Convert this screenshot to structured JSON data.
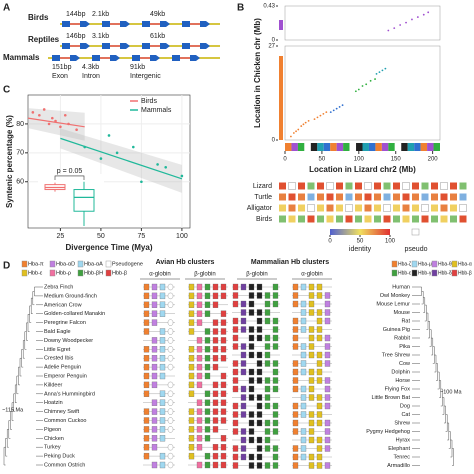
{
  "panels": {
    "a": {
      "letter": "A",
      "rows": [
        {
          "name": "Birds",
          "exon": "144bp",
          "intron": "2.1kb",
          "intergenic": "49kb"
        },
        {
          "name": "Reptiles",
          "exon": "146bp",
          "intron": "3.1kb",
          "intergenic": "61kb"
        },
        {
          "name": "Mammals",
          "exon": "151bp",
          "intron": "4.3kb",
          "intergenic": "91kb"
        }
      ],
      "legend": [
        "Exon",
        "Intron",
        "Intergenic"
      ]
    },
    "b": {
      "letter": "B",
      "species": [
        "Lizard",
        "Turtle",
        "Alligator",
        "Birds"
      ],
      "scale_ticks": [
        0,
        50,
        100
      ],
      "scale_labels": [
        "identity",
        "pseudo"
      ]
    },
    "c": {
      "letter": "C"
    },
    "d": {
      "letter": "D",
      "avian_legend": [
        "Hba-π",
        "Hba-αD",
        "Hba-αA",
        "Pseudogene",
        "Hbb-ε",
        "Hbb-ρ",
        "Hbb-βH",
        "Hbb-β"
      ],
      "mammal_legend": [
        "Hba-ζ",
        "Hba-μ",
        "Hba-θ",
        "Hba-α",
        "Hbb-ε",
        "Hbb-γ",
        "Hbb-δ",
        "Hbb-β"
      ],
      "avian_header": "Avian Hb clusters",
      "mammal_header": "Mammalian Hb clusters",
      "avian_sub": [
        "α-globin",
        "β-globin"
      ],
      "mammal_sub": [
        "β-globin",
        "α-globin"
      ],
      "avian_age": "~115 Ma",
      "mammal_age": "~100 Ma",
      "birds": [
        "Zebra Finch",
        "Medium Ground-finch",
        "American Crow",
        "Golden-collared Manakin",
        "Peregrine Falcon",
        "Bald Eagle",
        "Downy Woodpecker",
        "Little Egret",
        "Crested Ibis",
        "Adelie Penguin",
        "Emperor Penguin",
        "Killdeer",
        "Anna's Hummingbird",
        "Hoatzin",
        "Chimney Swift",
        "Common Cuckoo",
        "Pigeon",
        "Chicken",
        "Turkey",
        "Peking Duck",
        "Common Ostrich"
      ],
      "mammals": [
        "Human",
        "Owl Monkey",
        "Mouse Lemur",
        "Mouse",
        "Rat",
        "Guinea Pig",
        "Rabbit",
        "Pika",
        "Tree Shrew",
        "Cow",
        "Dolphin",
        "Horse",
        "Flying Fox",
        "Little Brown Bat",
        "Dog",
        "Cat",
        "Shrew",
        "Pygmy Hedgehog",
        "Hyrax",
        "Elephant",
        "Tenrec",
        "Armadillo"
      ]
    }
  },
  "chart_data": [
    {
      "type": "scatter",
      "y_label": "Syntenic percentage (%)",
      "x_label": "Divergence Time (Mya)",
      "xlim": [
        5,
        105
      ],
      "ylim": [
        44,
        90
      ],
      "xticks": [
        25,
        50,
        75,
        100
      ],
      "yticks": [
        60,
        70,
        80
      ],
      "grid": true,
      "series": [
        {
          "name": "Birds",
          "color": "#f07070",
          "x": [
            8,
            12,
            15,
            18,
            20,
            22,
            25,
            28,
            30,
            35
          ],
          "values": [
            84,
            83,
            85,
            80,
            82,
            81,
            79,
            83,
            80,
            78
          ],
          "fit_x": [
            5,
            40
          ],
          "fit": [
            82,
            79
          ]
        },
        {
          "name": "Mammals",
          "color": "#20b89a",
          "x": [
            40,
            50,
            55,
            60,
            70,
            75,
            85,
            90,
            100
          ],
          "values": [
            72,
            68,
            76,
            70,
            72,
            60,
            66,
            65,
            62
          ],
          "fit_x": [
            25,
            100
          ],
          "fit": [
            75,
            61
          ]
        }
      ],
      "boxplots": [
        {
          "color": "#f07070",
          "min": 56.6,
          "q1": 57.3,
          "median": 58,
          "q3": 59,
          "max": 59.7
        },
        {
          "color": "#20b89a",
          "min": 44.7,
          "q1": 49.8,
          "median": 54.6,
          "q3": 57.3,
          "max": 60
        }
      ],
      "annotation": "p = 0.05"
    },
    {
      "type": "dotplot",
      "x_label": "Location in Lizard chr2 (Mb)",
      "y_label": "Location in Chicken chr (Mb)",
      "xlim": [
        0,
        210
      ],
      "xticks": [
        0,
        50,
        100,
        150,
        200
      ],
      "ylim": [
        0,
        27
      ],
      "yticks": [
        0,
        27
      ],
      "top_ylim": [
        0,
        0.43
      ],
      "top_yticks": [
        0,
        0.43
      ],
      "series": [
        {
          "color": "#f08030",
          "x": [
            8,
            12,
            15,
            18,
            22,
            25,
            28,
            32,
            40,
            44,
            48,
            52,
            56
          ],
          "values": [
            1,
            2,
            2.5,
            3,
            4,
            4.5,
            5,
            5.5,
            6,
            6.5,
            7,
            7.5,
            8
          ]
        },
        {
          "color": "#3070d0",
          "x": [
            62,
            66,
            70,
            74,
            78
          ],
          "values": [
            8,
            8.5,
            9,
            9.5,
            10
          ]
        },
        {
          "color": "#30b040",
          "x": [
            96,
            100,
            105,
            110,
            116,
            122
          ],
          "values": [
            14,
            14.5,
            15.5,
            16,
            17,
            17.5
          ]
        },
        {
          "color": "#20a0b0",
          "x": [
            124,
            128,
            132,
            136
          ],
          "values": [
            19,
            19.5,
            20,
            20.5
          ]
        },
        {
          "color": "#a050d0",
          "axis": "top",
          "x": [
            140,
            148,
            156,
            164,
            172,
            180,
            188,
            194
          ],
          "values": [
            0.12,
            0.15,
            0.19,
            0.22,
            0.26,
            0.29,
            0.32,
            0.35
          ]
        }
      ]
    }
  ]
}
